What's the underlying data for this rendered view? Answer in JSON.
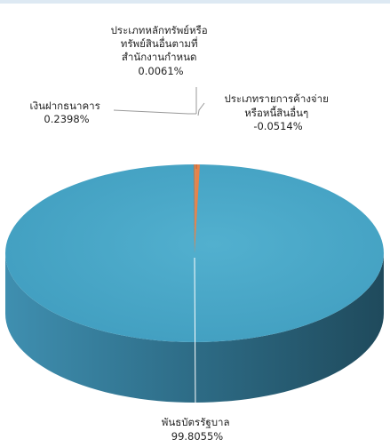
{
  "chart_data": {
    "type": "pie",
    "style": "3d",
    "slices": [
      {
        "label_lines": [
          "พันธบัตรรัฐบาล"
        ],
        "value_text": "99.8055%",
        "value": 99.8055,
        "color": "#4aa6c6"
      },
      {
        "label_lines": [
          "เงินฝากธนาคาร"
        ],
        "value_text": "0.2398%",
        "value": 0.2398,
        "color": "#e8824a"
      },
      {
        "label_lines": [
          "ประเภทหลักทรัพย์หรือ",
          "ทรัพย์สินอื่นตามที่",
          "สำนักงานกำหนด"
        ],
        "value_text": "0.0061%",
        "value": 0.0061,
        "color": "#f2c14e"
      },
      {
        "label_lines": [
          "ประเภทรายการค้างจ่าย",
          "หรือหนี้สินอื่นๆ"
        ],
        "value_text": "-0.0514%",
        "value": -0.0514,
        "color": "#b23a3a"
      }
    ]
  }
}
